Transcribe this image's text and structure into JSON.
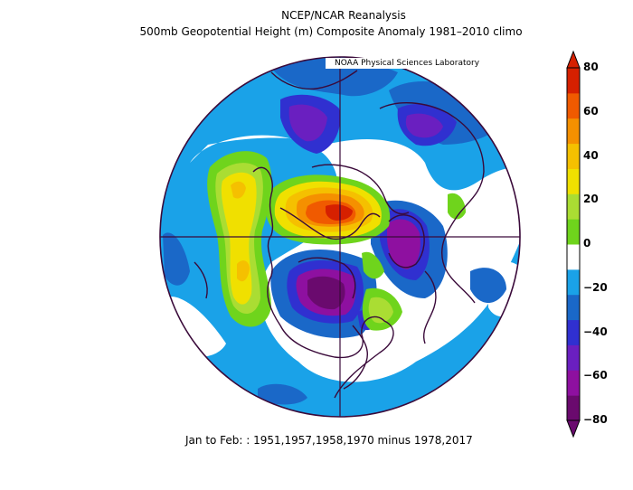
{
  "title": {
    "line1": "NCEP/NCAR Reanalysis",
    "line2": "500mb Geopotential Height (m) Composite Anomaly 1981–2010 climo"
  },
  "credit": "NOAA Physical Sciences Laboratory",
  "footer": "Jan to Feb: : 1951,1957,1958,1970 minus 1978,2017",
  "colorbar": {
    "ticks": [
      "80",
      "60",
      "40",
      "20",
      "0",
      "−20",
      "−40",
      "−60",
      "−80"
    ],
    "colors": [
      "#6a0a6e",
      "#8e10a0",
      "#6a1fc0",
      "#3030d0",
      "#1a68c8",
      "#1aa2e8",
      "#ffffff",
      "#6fd41c",
      "#aadd33",
      "#f0e000",
      "#f5c000",
      "#f59000",
      "#f05a00",
      "#d62000"
    ]
  },
  "map": {
    "projection": "north-polar-stereographic",
    "background_color": "#1aa2e8",
    "coastline_color": "#3a0a3a"
  }
}
